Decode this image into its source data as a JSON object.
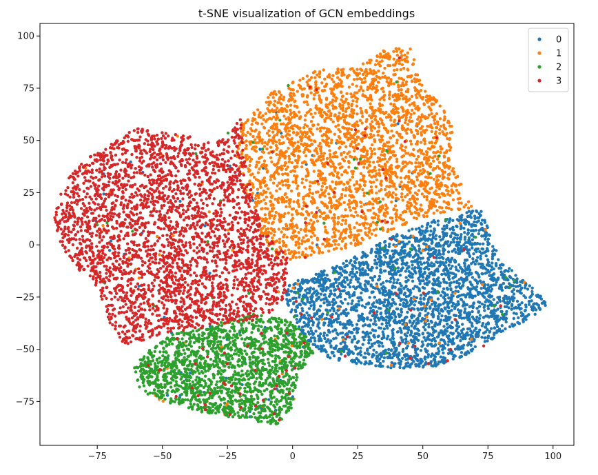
{
  "chart_data": {
    "type": "scatter",
    "title": "t-SNE visualization of GCN embeddings",
    "xlabel": "",
    "ylabel": "",
    "xlim": [
      -97,
      108
    ],
    "ylim": [
      -96,
      106
    ],
    "x_ticks": [
      -75,
      -50,
      -25,
      0,
      25,
      50,
      75,
      100
    ],
    "y_ticks": [
      -75,
      -50,
      -25,
      0,
      25,
      50,
      75,
      100
    ],
    "x_tick_labels": [
      "−75",
      "−50",
      "−25",
      "0",
      "25",
      "50",
      "75",
      "100"
    ],
    "y_tick_labels": [
      "−75",
      "−50",
      "−25",
      "0",
      "25",
      "50",
      "75",
      "100"
    ],
    "grid": false,
    "legend": {
      "position": "top-right",
      "entries": [
        "0",
        "1",
        "2",
        "3"
      ]
    },
    "colors": [
      "#1f77b4",
      "#ff7f0e",
      "#2ca02c",
      "#d62728"
    ],
    "series": [
      {
        "name": "0",
        "color": "#1f77b4",
        "cluster_polygon": [
          [
            0,
            -18
          ],
          [
            20,
            -8
          ],
          [
            40,
            5
          ],
          [
            55,
            12
          ],
          [
            72,
            18
          ],
          [
            75,
            8
          ],
          [
            80,
            -8
          ],
          [
            90,
            -18
          ],
          [
            98,
            -28
          ],
          [
            92,
            -35
          ],
          [
            80,
            -42
          ],
          [
            70,
            -52
          ],
          [
            55,
            -58
          ],
          [
            40,
            -60
          ],
          [
            25,
            -57
          ],
          [
            15,
            -55
          ],
          [
            5,
            -45
          ],
          [
            -2,
            -30
          ],
          [
            -3,
            -20
          ]
        ],
        "count": 2800
      },
      {
        "name": "1",
        "color": "#ff7f0e",
        "cluster_polygon": [
          [
            -20,
            58
          ],
          [
            -8,
            73
          ],
          [
            10,
            84
          ],
          [
            25,
            85
          ],
          [
            35,
            93
          ],
          [
            45,
            96
          ],
          [
            50,
            75
          ],
          [
            55,
            70
          ],
          [
            62,
            58
          ],
          [
            60,
            40
          ],
          [
            65,
            30
          ],
          [
            70,
            18
          ],
          [
            55,
            15
          ],
          [
            40,
            8
          ],
          [
            25,
            0
          ],
          [
            10,
            -5
          ],
          [
            -5,
            -8
          ],
          [
            -12,
            5
          ],
          [
            -18,
            25
          ],
          [
            -22,
            45
          ]
        ],
        "count": 2700
      },
      {
        "name": "2",
        "color": "#2ca02c",
        "cluster_polygon": [
          [
            -62,
            -60
          ],
          [
            -55,
            -50
          ],
          [
            -45,
            -42
          ],
          [
            -30,
            -38
          ],
          [
            -15,
            -33
          ],
          [
            -2,
            -36
          ],
          [
            5,
            -42
          ],
          [
            8,
            -52
          ],
          [
            2,
            -62
          ],
          [
            0,
            -78
          ],
          [
            -6,
            -86
          ],
          [
            -12,
            -85
          ],
          [
            -22,
            -83
          ],
          [
            -35,
            -80
          ],
          [
            -50,
            -75
          ],
          [
            -58,
            -70
          ]
        ],
        "count": 1700
      },
      {
        "name": "3",
        "color": "#d62728",
        "cluster_polygon": [
          [
            -90,
            22
          ],
          [
            -85,
            35
          ],
          [
            -78,
            42
          ],
          [
            -70,
            48
          ],
          [
            -65,
            52
          ],
          [
            -60,
            56
          ],
          [
            -50,
            54
          ],
          [
            -40,
            52
          ],
          [
            -30,
            48
          ],
          [
            -20,
            60
          ],
          [
            -18,
            40
          ],
          [
            -15,
            20
          ],
          [
            -10,
            5
          ],
          [
            -2,
            -5
          ],
          [
            -2,
            -22
          ],
          [
            -5,
            -30
          ],
          [
            -15,
            -36
          ],
          [
            -30,
            -38
          ],
          [
            -45,
            -42
          ],
          [
            -55,
            -45
          ],
          [
            -65,
            -48
          ],
          [
            -70,
            -38
          ],
          [
            -75,
            -20
          ],
          [
            -82,
            -12
          ],
          [
            -88,
            -2
          ],
          [
            -92,
            10
          ]
        ],
        "count": 3000
      }
    ]
  }
}
